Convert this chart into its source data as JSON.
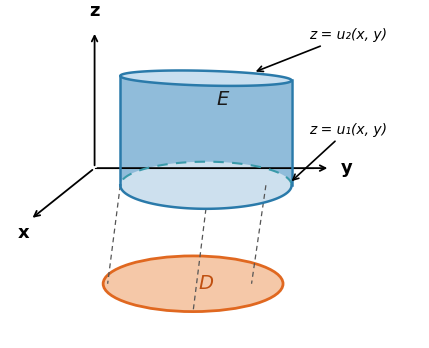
{
  "figsize": [
    4.29,
    3.48
  ],
  "dpi": 100,
  "background_color": "#ffffff",
  "cylinder_fill_color": "#b8d4e8",
  "cylinder_side_color": "#8ab8d8",
  "cylinder_edge_color": "#2a7aaa",
  "cylinder_top_color": "#c8dff0",
  "ellipse_D_fill": "#f5c8a8",
  "ellipse_D_edge": "#e06820",
  "dashed_color": "#3a9aaa",
  "axis_color": "#000000",
  "label_E": "E",
  "label_D": "D",
  "label_x": "x",
  "label_y": "y",
  "label_z": "z",
  "label_u2": "z = u₂(x, y)",
  "label_u1": "z = u₁(x, y)"
}
